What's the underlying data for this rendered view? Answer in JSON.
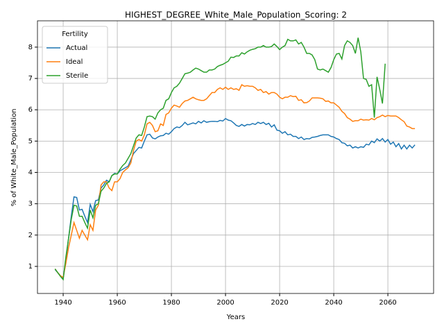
{
  "chart_data": {
    "type": "line",
    "title": "HIGHEST_DEGREE_White_Male_Population_Scoring: 2",
    "xlabel": "Years",
    "ylabel": "% of White_Male_Population",
    "legend_title": "Fertility",
    "legend_loc": "upper left",
    "grid": true,
    "xlim": [
      1930.5,
      2076.9
    ],
    "ylim": [
      0.136,
      8.84
    ],
    "xticks": [
      1940,
      1960,
      1980,
      2000,
      2020,
      2040,
      2060
    ],
    "yticks": [
      1,
      2,
      3,
      4,
      5,
      6,
      7,
      8
    ],
    "x": [
      1937,
      1938,
      1939,
      1940,
      1941,
      1942,
      1943,
      1944,
      1945,
      1946,
      1947,
      1948,
      1949,
      1950,
      1951,
      1952,
      1953,
      1954,
      1955,
      1956,
      1957,
      1958,
      1959,
      1960,
      1961,
      1962,
      1963,
      1964,
      1965,
      1966,
      1967,
      1968,
      1969,
      1970,
      1971,
      1972,
      1973,
      1974,
      1975,
      1976,
      1977,
      1978,
      1979,
      1980,
      1981,
      1982,
      1983,
      1984,
      1985,
      1986,
      1987,
      1988,
      1989,
      1990,
      1991,
      1992,
      1993,
      1994,
      1995,
      1996,
      1997,
      1998,
      1999,
      2000,
      2001,
      2002,
      2003,
      2004,
      2005,
      2006,
      2007,
      2008,
      2009,
      2010,
      2011,
      2012,
      2013,
      2014,
      2015,
      2016,
      2017,
      2018,
      2019,
      2020,
      2021,
      2022,
      2023,
      2024,
      2025,
      2026,
      2027,
      2028,
      2029,
      2030,
      2031,
      2032,
      2033,
      2034,
      2035,
      2036,
      2037,
      2038,
      2039,
      2040,
      2041,
      2042,
      2043,
      2044,
      2045,
      2046,
      2047,
      2048,
      2049,
      2050,
      2051,
      2052,
      2053,
      2054,
      2055,
      2056,
      2057,
      2058,
      2059,
      2060,
      2061,
      2062,
      2063,
      2064,
      2065,
      2066,
      2067,
      2068,
      2069,
      2070
    ],
    "series": [
      {
        "name": "Actual",
        "color": "#1f77b4",
        "values": [
          0.9,
          0.8,
          0.7,
          0.62,
          1.2,
          1.9,
          2.6,
          3.22,
          3.2,
          2.8,
          2.82,
          2.6,
          2.4,
          2.98,
          2.75,
          3.1,
          3.12,
          3.5,
          3.6,
          3.75,
          3.7,
          3.9,
          3.97,
          3.95,
          4.05,
          4.1,
          4.15,
          4.2,
          4.4,
          4.6,
          4.7,
          4.8,
          4.78,
          5.0,
          5.2,
          5.22,
          5.1,
          5.07,
          5.13,
          5.17,
          5.18,
          5.25,
          5.22,
          5.3,
          5.4,
          5.45,
          5.43,
          5.5,
          5.6,
          5.52,
          5.55,
          5.58,
          5.55,
          5.63,
          5.58,
          5.65,
          5.6,
          5.62,
          5.63,
          5.63,
          5.62,
          5.66,
          5.64,
          5.72,
          5.67,
          5.65,
          5.58,
          5.5,
          5.47,
          5.53,
          5.48,
          5.53,
          5.52,
          5.56,
          5.53,
          5.6,
          5.56,
          5.6,
          5.53,
          5.57,
          5.45,
          5.52,
          5.35,
          5.33,
          5.25,
          5.3,
          5.2,
          5.22,
          5.15,
          5.15,
          5.08,
          5.13,
          5.05,
          5.08,
          5.07,
          5.12,
          5.13,
          5.15,
          5.18,
          5.2,
          5.2,
          5.2,
          5.15,
          5.13,
          5.08,
          5.05,
          4.95,
          4.93,
          4.85,
          4.87,
          4.78,
          4.82,
          4.78,
          4.82,
          4.8,
          4.9,
          4.88,
          5.0,
          4.95,
          5.07,
          5.0,
          5.08,
          4.97,
          5.05,
          4.9,
          4.97,
          4.82,
          4.92,
          4.75,
          4.87,
          4.75,
          4.87,
          4.78,
          4.88
        ]
      },
      {
        "name": "Ideal",
        "color": "#ff7f0e",
        "values": [
          0.92,
          0.8,
          0.7,
          0.65,
          1.1,
          1.6,
          2.0,
          2.4,
          2.15,
          1.9,
          2.15,
          2.0,
          1.85,
          2.33,
          2.15,
          2.8,
          2.95,
          3.6,
          3.7,
          3.7,
          3.5,
          3.42,
          3.7,
          3.7,
          3.8,
          4.0,
          4.08,
          4.15,
          4.3,
          4.7,
          5.0,
          5.05,
          5.0,
          5.2,
          5.55,
          5.6,
          5.5,
          5.3,
          5.33,
          5.55,
          5.5,
          5.85,
          5.9,
          6.05,
          6.15,
          6.12,
          6.08,
          6.2,
          6.28,
          6.3,
          6.35,
          6.4,
          6.35,
          6.32,
          6.3,
          6.3,
          6.35,
          6.45,
          6.55,
          6.55,
          6.65,
          6.7,
          6.65,
          6.72,
          6.65,
          6.7,
          6.65,
          6.67,
          6.62,
          6.8,
          6.75,
          6.77,
          6.75,
          6.75,
          6.7,
          6.62,
          6.65,
          6.55,
          6.58,
          6.5,
          6.55,
          6.55,
          6.5,
          6.4,
          6.35,
          6.4,
          6.4,
          6.45,
          6.42,
          6.43,
          6.3,
          6.32,
          6.22,
          6.23,
          6.28,
          6.38,
          6.38,
          6.38,
          6.37,
          6.35,
          6.27,
          6.28,
          6.22,
          6.22,
          6.15,
          6.08,
          5.95,
          5.88,
          5.75,
          5.7,
          5.63,
          5.65,
          5.65,
          5.7,
          5.67,
          5.68,
          5.67,
          5.72,
          5.68,
          5.75,
          5.78,
          5.83,
          5.78,
          5.82,
          5.8,
          5.8,
          5.8,
          5.75,
          5.68,
          5.62,
          5.48,
          5.45,
          5.4,
          5.4
        ]
      },
      {
        "name": "Sterile",
        "color": "#2ca02c",
        "values": [
          0.92,
          0.8,
          0.68,
          0.58,
          1.3,
          1.9,
          2.5,
          2.95,
          2.93,
          2.6,
          2.6,
          2.4,
          2.22,
          2.8,
          2.55,
          2.95,
          3.0,
          3.4,
          3.5,
          3.65,
          3.7,
          3.9,
          3.95,
          3.95,
          4.1,
          4.22,
          4.3,
          4.45,
          4.6,
          4.85,
          5.1,
          5.2,
          5.18,
          5.45,
          5.78,
          5.8,
          5.78,
          5.7,
          5.9,
          6.0,
          6.05,
          6.3,
          6.35,
          6.55,
          6.7,
          6.75,
          6.85,
          7.0,
          7.15,
          7.17,
          7.2,
          7.27,
          7.33,
          7.3,
          7.25,
          7.2,
          7.2,
          7.27,
          7.27,
          7.3,
          7.38,
          7.42,
          7.45,
          7.5,
          7.55,
          7.68,
          7.67,
          7.72,
          7.72,
          7.82,
          7.78,
          7.85,
          7.9,
          7.93,
          7.95,
          8.0,
          8.0,
          8.05,
          8.0,
          8.0,
          8.02,
          8.1,
          8.02,
          7.92,
          8.0,
          8.05,
          8.25,
          8.2,
          8.2,
          8.23,
          8.1,
          8.15,
          8.0,
          7.8,
          7.8,
          7.75,
          7.6,
          7.3,
          7.27,
          7.3,
          7.25,
          7.2,
          7.35,
          7.6,
          7.78,
          7.8,
          7.62,
          8.05,
          8.2,
          8.15,
          8.05,
          7.8,
          8.3,
          7.85,
          7.0,
          6.97,
          6.75,
          6.8,
          5.75,
          7.05,
          6.65,
          6.2,
          7.47,
          null,
          null,
          null,
          null,
          null,
          null,
          null,
          null,
          null,
          null,
          null
        ]
      }
    ]
  }
}
